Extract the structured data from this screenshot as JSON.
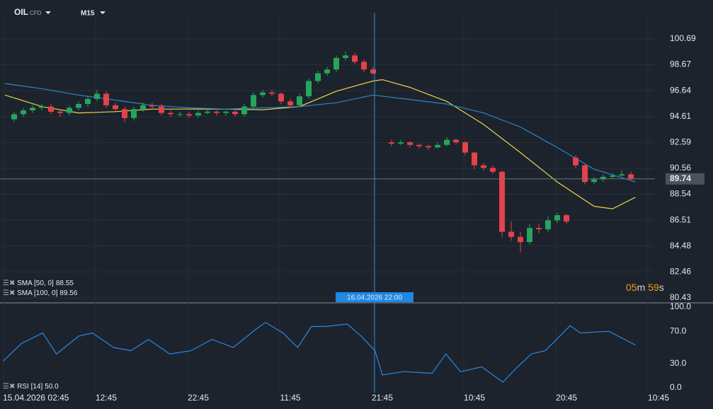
{
  "header": {
    "symbol": "OIL",
    "symbol_type": "CFD",
    "timeframe": "M15"
  },
  "chart_data": {
    "type": "candlestick",
    "xlim": [
      -1.54,
      75.92
    ],
    "xticks": [
      {
        "value": 0,
        "label": "15.04.2026 02:45"
      },
      {
        "value": 10,
        "label": "12:45"
      },
      {
        "value": 20,
        "label": "22:45"
      },
      {
        "value": 30,
        "label": "11:45"
      },
      {
        "value": 40,
        "label": "21:45"
      },
      {
        "value": 50,
        "label": "10:45"
      },
      {
        "value": 60,
        "label": "20:45"
      },
      {
        "value": 70,
        "label": "10:45"
      }
    ],
    "ylim": [
      80.04,
      102.74
    ],
    "yticks": [
      100.69,
      98.67,
      96.64,
      94.61,
      92.59,
      90.56,
      88.54,
      86.51,
      84.48,
      82.46,
      80.43
    ],
    "grid": true,
    "up_color": "#26a65b",
    "down_color": "#e5424c",
    "candles": {
      "x": [
        0,
        1,
        2,
        3,
        4,
        5,
        6,
        7,
        8,
        9,
        10,
        11,
        12,
        13,
        14,
        15,
        16,
        17,
        18,
        19,
        20,
        21,
        22,
        23,
        24,
        25,
        26,
        27,
        28,
        29,
        30,
        31,
        32,
        33,
        34,
        35,
        36,
        37,
        38,
        39,
        41,
        42,
        43,
        44,
        45,
        46,
        47,
        48,
        49,
        50,
        51,
        52,
        53,
        54,
        55,
        56,
        57,
        58,
        59,
        60,
        61,
        62,
        63,
        64,
        65,
        66,
        67
      ],
      "ohlc": [
        [
          94.4,
          95.0,
          94.2,
          94.8
        ],
        [
          94.8,
          95.3,
          94.6,
          95.1
        ],
        [
          95.1,
          95.5,
          94.9,
          95.3
        ],
        [
          95.3,
          95.6,
          95.1,
          95.4
        ],
        [
          95.4,
          95.6,
          94.8,
          95.0
        ],
        [
          95.0,
          95.2,
          94.6,
          94.9
        ],
        [
          94.9,
          95.5,
          94.7,
          95.3
        ],
        [
          95.3,
          95.8,
          95.1,
          95.6
        ],
        [
          95.6,
          96.2,
          95.4,
          96.0
        ],
        [
          96.0,
          96.7,
          95.8,
          96.4
        ],
        [
          96.4,
          96.6,
          95.3,
          95.5
        ],
        [
          95.5,
          95.7,
          95.0,
          95.2
        ],
        [
          95.2,
          95.4,
          94.2,
          94.5
        ],
        [
          94.5,
          95.4,
          94.3,
          95.2
        ],
        [
          95.2,
          95.7,
          95.0,
          95.5
        ],
        [
          95.5,
          95.7,
          95.2,
          95.4
        ],
        [
          95.4,
          95.6,
          94.7,
          94.9
        ],
        [
          94.9,
          95.1,
          94.6,
          94.8
        ],
        [
          94.8,
          95.0,
          94.6,
          94.8
        ],
        [
          94.8,
          95.0,
          94.5,
          94.7
        ],
        [
          94.7,
          95.1,
          94.5,
          94.9
        ],
        [
          94.9,
          95.2,
          94.8,
          95.0
        ],
        [
          95.0,
          95.1,
          94.7,
          94.9
        ],
        [
          94.9,
          95.1,
          94.7,
          95.0
        ],
        [
          95.0,
          95.2,
          94.6,
          94.8
        ],
        [
          94.8,
          95.6,
          94.6,
          95.4
        ],
        [
          95.4,
          96.5,
          95.3,
          96.3
        ],
        [
          96.3,
          96.7,
          96.1,
          96.5
        ],
        [
          96.5,
          96.7,
          96.2,
          96.4
        ],
        [
          96.4,
          96.5,
          95.6,
          95.8
        ],
        [
          95.8,
          96.0,
          95.3,
          95.5
        ],
        [
          95.5,
          96.4,
          95.4,
          96.2
        ],
        [
          96.2,
          97.6,
          96.0,
          97.4
        ],
        [
          97.4,
          98.2,
          97.2,
          98.0
        ],
        [
          98.0,
          98.5,
          97.8,
          98.3
        ],
        [
          98.3,
          99.4,
          98.1,
          99.2
        ],
        [
          99.2,
          99.7,
          99.0,
          99.4
        ],
        [
          99.4,
          99.6,
          98.7,
          98.9
        ],
        [
          98.9,
          99.1,
          98.1,
          98.3
        ],
        [
          98.3,
          98.5,
          97.9,
          98.0
        ],
        [
          92.6,
          92.8,
          92.3,
          92.5
        ],
        [
          92.5,
          92.8,
          92.4,
          92.6
        ],
        [
          92.6,
          92.7,
          92.2,
          92.4
        ],
        [
          92.4,
          92.5,
          92.1,
          92.3
        ],
        [
          92.3,
          92.4,
          92.0,
          92.2
        ],
        [
          92.2,
          92.6,
          92.1,
          92.4
        ],
        [
          92.4,
          93.0,
          92.3,
          92.8
        ],
        [
          92.8,
          92.9,
          92.4,
          92.6
        ],
        [
          92.6,
          92.7,
          91.6,
          91.8
        ],
        [
          91.8,
          91.9,
          90.5,
          90.8
        ],
        [
          90.8,
          91.0,
          90.4,
          90.6
        ],
        [
          90.6,
          90.8,
          90.1,
          90.3
        ],
        [
          90.3,
          90.4,
          85.2,
          85.6
        ],
        [
          85.6,
          86.4,
          84.9,
          85.2
        ],
        [
          85.2,
          85.6,
          84.0,
          84.8
        ],
        [
          84.8,
          86.2,
          84.6,
          85.9
        ],
        [
          85.9,
          86.2,
          85.5,
          85.8
        ],
        [
          85.8,
          86.8,
          85.6,
          86.5
        ],
        [
          86.5,
          87.1,
          86.3,
          86.9
        ],
        [
          86.9,
          87.0,
          86.2,
          86.4
        ],
        [
          91.4,
          91.6,
          90.6,
          90.8
        ],
        [
          90.8,
          90.9,
          89.3,
          89.5
        ],
        [
          89.5,
          89.9,
          89.3,
          89.7
        ],
        [
          89.7,
          90.1,
          89.5,
          89.9
        ],
        [
          89.9,
          90.2,
          89.7,
          90.0
        ],
        [
          90.0,
          90.4,
          89.9,
          90.1
        ],
        [
          90.1,
          90.3,
          89.6,
          89.74
        ]
      ]
    },
    "overlays": [
      {
        "name": "SMA [50, 0]",
        "last": 88.55,
        "color": "#e8d44d",
        "x": [
          -1,
          3,
          7,
          11,
          15,
          19,
          23,
          27,
          31,
          35,
          39,
          40,
          43,
          47,
          51,
          55,
          59,
          63,
          65,
          67.5
        ],
        "values": [
          96.3,
          95.4,
          94.9,
          95.0,
          95.2,
          95.2,
          95.2,
          95.15,
          95.4,
          96.6,
          97.4,
          97.5,
          96.9,
          95.8,
          94.0,
          91.8,
          89.5,
          87.6,
          87.4,
          88.3
        ]
      },
      {
        "name": "SMA [100, 0]",
        "last": 89.56,
        "color": "#2f86c8",
        "x": [
          -1,
          3,
          7,
          11,
          15,
          19,
          23,
          27,
          31,
          35,
          39,
          43,
          47,
          51,
          55,
          59,
          63,
          67.5
        ],
        "values": [
          97.2,
          96.8,
          96.3,
          95.9,
          95.5,
          95.3,
          95.2,
          95.3,
          95.4,
          95.7,
          96.3,
          95.95,
          95.6,
          94.9,
          93.8,
          92.2,
          90.5,
          89.5
        ]
      }
    ],
    "last_price": 89.74,
    "crosshair": {
      "x": 39.15,
      "label": "16.04.2026 22:00"
    },
    "countdown": {
      "minutes": "05",
      "minute_unit": "m",
      "seconds": "59",
      "second_unit": "s"
    },
    "rsi": {
      "name": "RSI [14]",
      "last": {
        "value": 50,
        "label": "50.0"
      },
      "color": "#2f86e0",
      "ylim": [
        -6.1,
        105.3
      ],
      "yticks": [
        {
          "value": 100,
          "label": "100.0"
        },
        {
          "value": 70,
          "label": "70.0"
        },
        {
          "value": 30,
          "label": "30.0"
        },
        {
          "value": 0,
          "label": "0.0"
        }
      ],
      "x": [
        -1.2,
        0.8,
        3.1,
        4.6,
        7,
        8.5,
        10.8,
        12.7,
        14.6,
        16.9,
        19.2,
        21.5,
        23.8,
        26.2,
        27.3,
        29.2,
        30.8,
        32.3,
        33.8,
        36.2,
        37.7,
        39.2,
        40,
        42.3,
        45.4,
        46.9,
        48.5,
        50.8,
        53.1,
        54.6,
        56.2,
        57.7,
        60.4,
        61.5,
        64.6,
        67.5
      ],
      "values": [
        33,
        55,
        68,
        42,
        64,
        68,
        50,
        46,
        60,
        42,
        46,
        60,
        50,
        72,
        81,
        68,
        50,
        76,
        76,
        79,
        64,
        46,
        16,
        20,
        18,
        42,
        20,
        26,
        7,
        25,
        42,
        46,
        77,
        68,
        70,
        53
      ]
    }
  }
}
